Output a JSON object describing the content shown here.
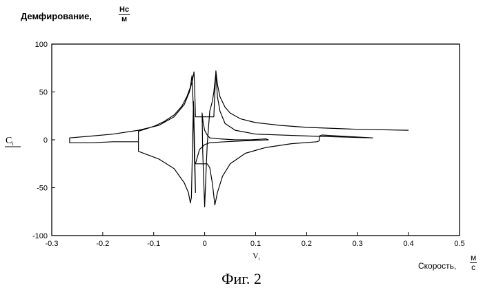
{
  "figure": {
    "y_label": "Демфирование,",
    "y_unit_num": "Нс",
    "y_unit_den": "м",
    "x_label": "Скорость,",
    "x_unit_num": "м",
    "x_unit_den": "с",
    "y_var": "C",
    "y_var_sub": "i",
    "x_var": "V",
    "x_var_sub": "i",
    "caption": "Фиг. 2"
  },
  "chart_data": {
    "type": "line",
    "xlim": [
      -0.3,
      0.5
    ],
    "ylim": [
      -100,
      100
    ],
    "x_ticks": [
      "-0.3",
      "-0.2",
      "-0.1",
      "0",
      "0.1",
      "0.2",
      "0.3",
      "0.4",
      "0.5"
    ],
    "y_ticks": [
      "100",
      "50",
      "0",
      "-50",
      "-100"
    ],
    "grid": false,
    "series": [
      {
        "points": [
          [
            0.4,
            10
          ],
          [
            0.3,
            11
          ],
          [
            0.2,
            13
          ],
          [
            0.15,
            15
          ],
          [
            0.1,
            18
          ],
          [
            0.07,
            22
          ],
          [
            0.05,
            28
          ],
          [
            0.04,
            34
          ],
          [
            0.03,
            45
          ],
          [
            0.025,
            58
          ],
          [
            0.022,
            72
          ],
          [
            0.02,
            50
          ],
          [
            0.018,
            24
          ],
          [
            0.0,
            24
          ],
          [
            -0.01,
            24
          ],
          [
            -0.018,
            24
          ],
          [
            -0.02,
            62
          ],
          [
            -0.021,
            71
          ],
          [
            -0.024,
            62
          ],
          [
            -0.03,
            50
          ],
          [
            -0.04,
            37
          ],
          [
            -0.06,
            24
          ],
          [
            -0.09,
            15
          ],
          [
            -0.13,
            10
          ],
          [
            -0.18,
            6
          ],
          [
            -0.22,
            4
          ],
          [
            -0.265,
            2
          ],
          [
            -0.265,
            -3
          ],
          [
            -0.22,
            -3
          ],
          [
            -0.18,
            -2
          ],
          [
            -0.13,
            -2
          ],
          [
            -0.13,
            9
          ],
          [
            -0.1,
            14
          ],
          [
            -0.08,
            19
          ],
          [
            -0.06,
            26
          ],
          [
            -0.045,
            35
          ],
          [
            -0.035,
            45
          ],
          [
            -0.028,
            55
          ],
          [
            -0.025,
            67
          ],
          [
            -0.022,
            30
          ],
          [
            -0.02,
            -20
          ],
          [
            -0.018,
            -55
          ],
          [
            -0.02,
            0
          ],
          [
            -0.022,
            40
          ],
          [
            -0.024,
            -10
          ],
          [
            -0.026,
            -60
          ],
          [
            -0.028,
            -66
          ],
          [
            -0.032,
            -55
          ],
          [
            -0.04,
            -45
          ],
          [
            -0.06,
            -30
          ],
          [
            -0.09,
            -20
          ],
          [
            -0.13,
            -12
          ],
          [
            -0.13,
            -2
          ]
        ]
      },
      {
        "points": [
          [
            -0.018,
            -25
          ],
          [
            -0.01,
            -25
          ],
          [
            0.0,
            -25
          ],
          [
            0.005,
            -25
          ],
          [
            0.01,
            -29
          ],
          [
            0.015,
            -45
          ],
          [
            0.02,
            -68
          ],
          [
            0.025,
            -55
          ],
          [
            0.035,
            -38
          ],
          [
            0.05,
            -25
          ],
          [
            0.08,
            -14
          ],
          [
            0.12,
            -8
          ],
          [
            0.17,
            -4
          ],
          [
            0.22,
            -2
          ],
          [
            0.225,
            -1
          ],
          [
            0.225,
            4
          ],
          [
            0.23,
            5
          ],
          [
            0.33,
            2
          ],
          [
            0.2,
            4
          ],
          [
            0.1,
            6
          ],
          [
            0.06,
            10
          ],
          [
            0.04,
            17
          ],
          [
            0.03,
            30
          ],
          [
            0.025,
            45
          ],
          [
            0.022,
            70
          ],
          [
            0.018,
            50
          ],
          [
            0.015,
            40
          ],
          [
            0.01,
            30
          ],
          [
            0.005,
            -5
          ],
          [
            0.003,
            -30
          ],
          [
            0.0,
            -70
          ],
          [
            -0.002,
            -40
          ],
          [
            -0.004,
            -10
          ],
          [
            -0.005,
            28
          ],
          [
            -0.003,
            18
          ],
          [
            0.0,
            10
          ],
          [
            0.005,
            5
          ],
          [
            0.01,
            2
          ],
          [
            0.03,
            1
          ],
          [
            0.06,
            0
          ],
          [
            0.09,
            0
          ],
          [
            0.12,
            1
          ],
          [
            0.125,
            0
          ],
          [
            0.08,
            -1
          ],
          [
            0.04,
            -2
          ],
          [
            0.01,
            -3
          ],
          [
            0.0,
            -5
          ],
          [
            -0.01,
            -10
          ],
          [
            -0.018,
            -25
          ]
        ]
      }
    ]
  }
}
